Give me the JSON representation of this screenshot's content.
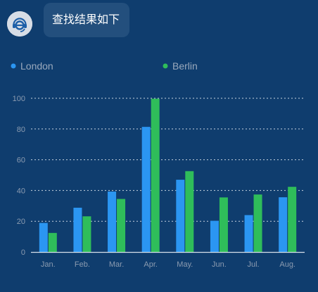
{
  "message": {
    "text": "查找结果如下"
  },
  "assistant": {
    "icon": "headset-assistant-icon"
  },
  "colors": {
    "background": "#0f3d6e",
    "bubble": "#234f7d",
    "london": "#2b96f2",
    "berlin": "#2fbd5a"
  },
  "chart_data": {
    "type": "bar",
    "categories": [
      "Jan.",
      "Feb.",
      "Mar.",
      "Apr.",
      "May.",
      "Jun.",
      "Jul.",
      "Aug."
    ],
    "series": [
      {
        "name": "London",
        "values": [
          18.9,
          28.8,
          39.3,
          81.4,
          47.0,
          20.3,
          24.0,
          35.6
        ]
      },
      {
        "name": "Berlin",
        "values": [
          12.4,
          23.2,
          34.5,
          99.7,
          52.6,
          35.5,
          37.4,
          42.4
        ]
      }
    ],
    "yticks": [
      0,
      20,
      40,
      60,
      80,
      100
    ],
    "ylim": [
      0,
      100
    ],
    "grid": true,
    "legend_position": "top"
  }
}
